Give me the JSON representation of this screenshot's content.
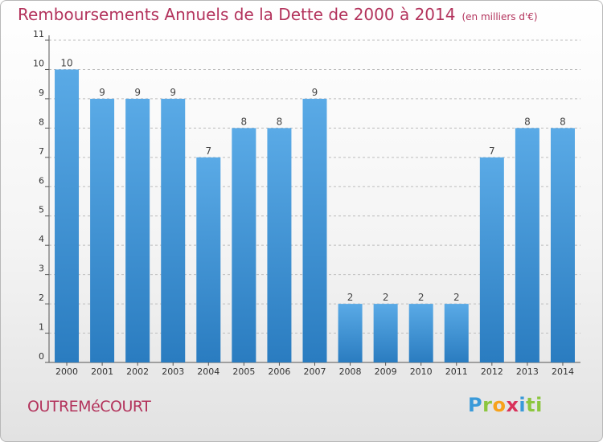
{
  "header": {
    "title": "Remboursements Annuels de la Dette de 2000 à 2014",
    "unit": "(en milliers d'€)"
  },
  "footer": {
    "commune": "OUTREMéCOURT",
    "logo": "Proxiti",
    "logo_letters": [
      "P",
      "r",
      "o",
      "x",
      "i",
      "ti"
    ]
  },
  "colors": {
    "bar_light": "#5aaae6",
    "bar_dark": "#2a7cc0",
    "title": "#b3335c",
    "grid": "#bdbdbd"
  },
  "chart_data": {
    "type": "bar",
    "categories": [
      "2000",
      "2001",
      "2002",
      "2003",
      "2004",
      "2005",
      "2006",
      "2007",
      "2008",
      "2009",
      "2010",
      "2011",
      "2012",
      "2013",
      "2014"
    ],
    "values": [
      10,
      9,
      9,
      9,
      7,
      8,
      8,
      9,
      2,
      2,
      2,
      2,
      7,
      8,
      8
    ],
    "title": "Remboursements Annuels de la Dette de 2000 à 2014",
    "xlabel": "",
    "ylabel": "",
    "ylim": [
      0,
      11
    ],
    "yticks": [
      0,
      1,
      2,
      3,
      4,
      5,
      6,
      7,
      8,
      9,
      10,
      11
    ],
    "grid": true,
    "data_labels": true
  }
}
